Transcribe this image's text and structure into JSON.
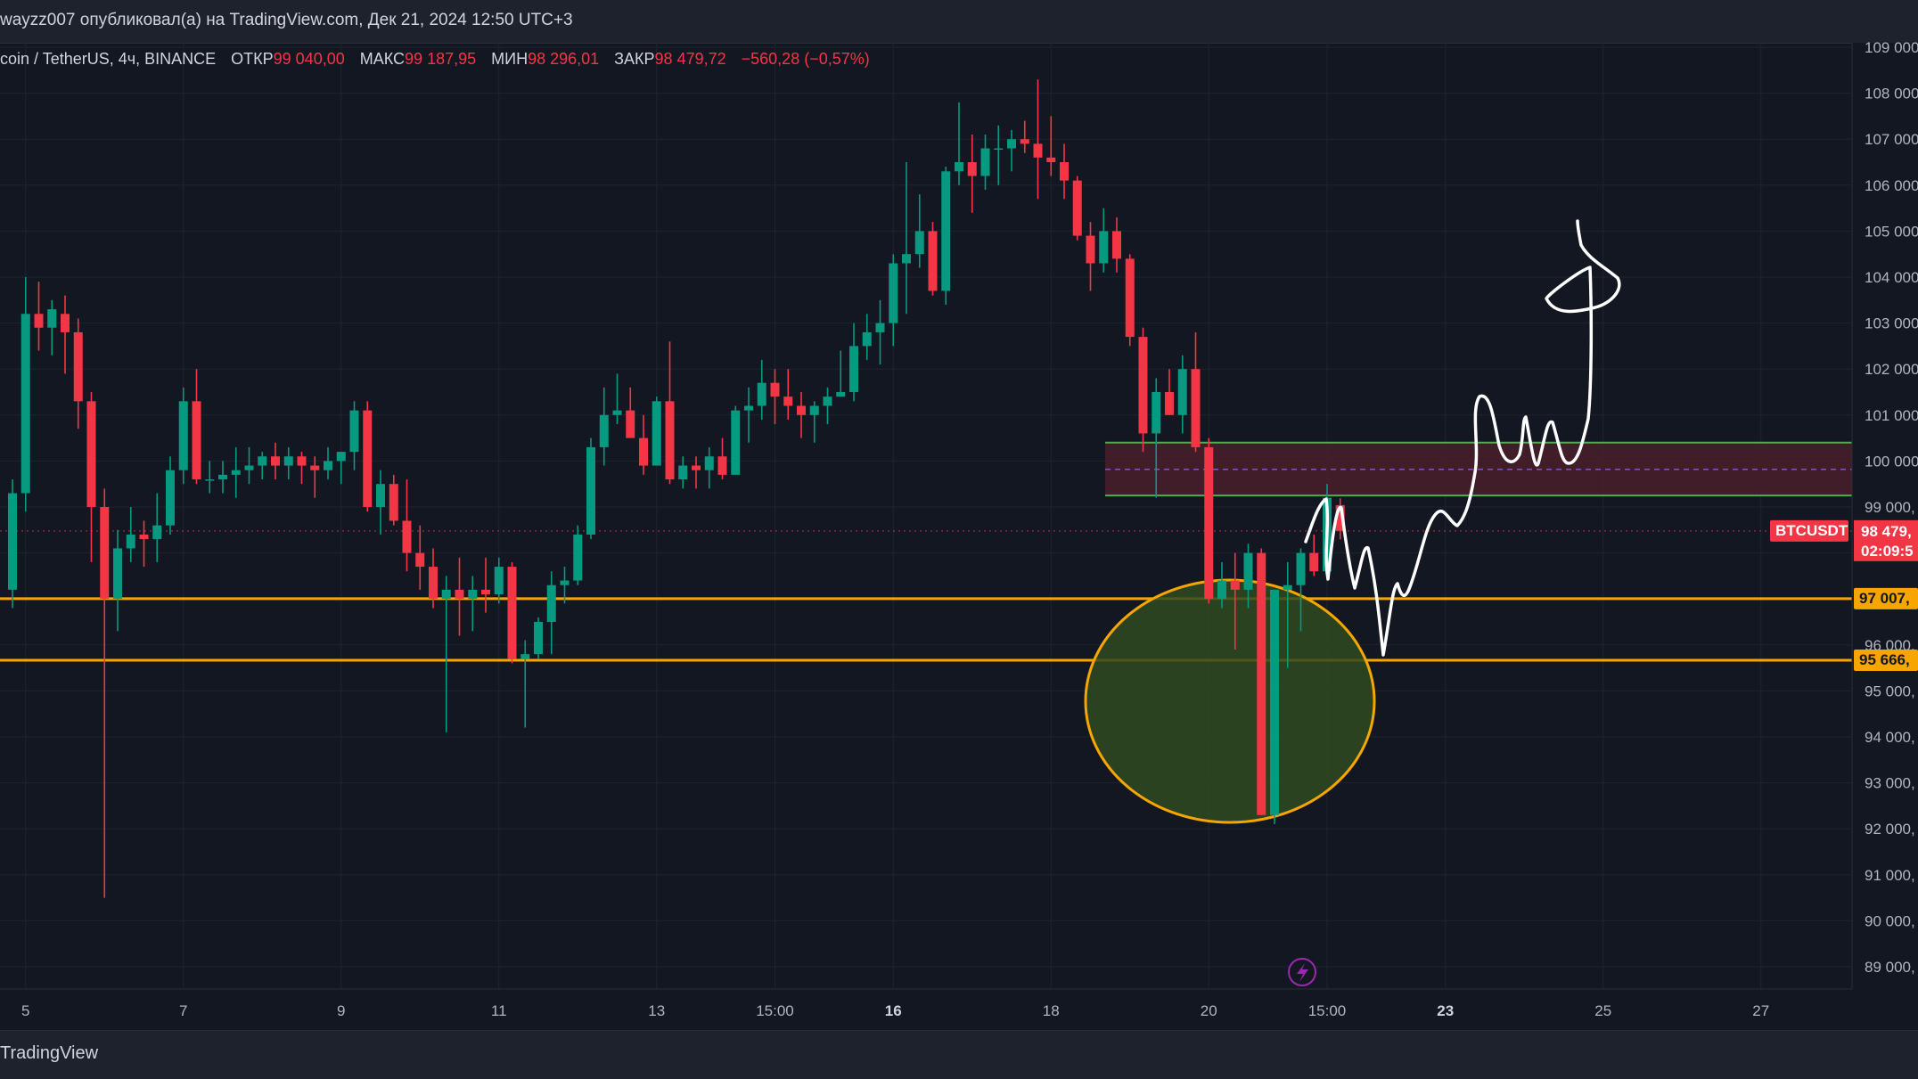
{
  "header": {
    "publish_line": "wayzz007 опубликовал(а) на TradingView.com, Дек 21, 2024 12:50 UTC+3"
  },
  "legend": {
    "symbol": "coin / TetherUS, 4ч, BINANCE",
    "open_label": "ОТКР",
    "open_value": "99 040,00",
    "high_label": "МАКС",
    "high_value": "99 187,95",
    "low_label": "МИН",
    "low_value": "98 296,01",
    "close_label": "ЗАКР",
    "close_value": "98 479,72",
    "change": "−560,28 (−0,57%)"
  },
  "footer": {
    "brand": "TradingView"
  },
  "colors": {
    "background": "#131722",
    "bull": "#089981",
    "bear": "#f23645",
    "support": "#f7a600",
    "zone_fill": "#4a1f2c",
    "zone_border": "#4caf50",
    "ellipse_fill": "#2f4a1f",
    "ellipse_stroke": "#f7a600",
    "drawing": "#ffffff"
  },
  "tags": {
    "symbol_tag": "BTCUSDT",
    "last_price": "98 479,",
    "countdown": "02:09:5",
    "support1": "97 007,",
    "support2": "95 666,"
  },
  "chart_data": {
    "type": "candlestick",
    "title": "",
    "timeframe": "4ч",
    "xlabel": "",
    "ylabel": "",
    "ylim": [
      88500,
      109200
    ],
    "y_ticks": [
      "109 000,",
      "108 000,",
      "107 000,",
      "106 000,",
      "105 000,",
      "104 000,",
      "103 000,",
      "102 000,",
      "101 000,",
      "100 000,",
      "99 000,",
      "98 000,",
      "97 000,",
      "96 000,",
      "95 000,",
      "94 000,",
      "93 000,",
      "92 000,",
      "91 000,",
      "90 000,",
      "89 000,"
    ],
    "y_tick_values": [
      109000,
      108000,
      107000,
      106000,
      105000,
      104000,
      103000,
      102000,
      101000,
      100000,
      99000,
      98000,
      97000,
      96000,
      95000,
      94000,
      93000,
      92000,
      91000,
      90000,
      89000
    ],
    "x_ticks": [
      {
        "label": "5",
        "bar": 1,
        "bold": false
      },
      {
        "label": "7",
        "bar": 13,
        "bold": false
      },
      {
        "label": "9",
        "bar": 25,
        "bold": false
      },
      {
        "label": "11",
        "bar": 37,
        "bold": false
      },
      {
        "label": "13",
        "bar": 49,
        "bold": false
      },
      {
        "label": "15:00",
        "bar": 58,
        "bold": false
      },
      {
        "label": "16",
        "bar": 67,
        "bold": true
      },
      {
        "label": "18",
        "bar": 79,
        "bold": false
      },
      {
        "label": "20",
        "bar": 91,
        "bold": false
      },
      {
        "label": "15:00",
        "bar": 100,
        "bold": false
      },
      {
        "label": "23",
        "bar": 109,
        "bold": true
      },
      {
        "label": "25",
        "bar": 121,
        "bold": false
      },
      {
        "label": "27",
        "bar": 133,
        "bold": false
      }
    ],
    "grid": true,
    "last_price": 98479.72,
    "horizontal_lines": [
      97007,
      95666
    ],
    "resistance_zone": {
      "top": 100400,
      "bottom": 99250,
      "mid": 99820
    },
    "candles": [
      [
        97200,
        99600,
        96800,
        99300
      ],
      [
        99300,
        104000,
        98900,
        103200
      ],
      [
        103200,
        103900,
        102400,
        102900
      ],
      [
        102900,
        103500,
        102300,
        103300
      ],
      [
        103200,
        103600,
        101900,
        102800
      ],
      [
        102800,
        103100,
        100700,
        101300
      ],
      [
        101300,
        101500,
        97800,
        99000
      ],
      [
        99000,
        99400,
        90500,
        97000
      ],
      [
        97000,
        98500,
        96300,
        98100
      ],
      [
        98100,
        99000,
        97800,
        98400
      ],
      [
        98400,
        98700,
        97700,
        98300
      ],
      [
        98300,
        99300,
        97800,
        98600
      ],
      [
        98600,
        100100,
        98400,
        99800
      ],
      [
        99800,
        101600,
        99500,
        101300
      ],
      [
        101300,
        102000,
        99500,
        99600
      ],
      [
        99600,
        100000,
        99300,
        99600
      ],
      [
        99600,
        100000,
        99300,
        99700
      ],
      [
        99700,
        100300,
        99200,
        99800
      ],
      [
        99800,
        100300,
        99500,
        99900
      ],
      [
        99900,
        100200,
        99600,
        100100
      ],
      [
        100100,
        100400,
        99600,
        99900
      ],
      [
        99900,
        100300,
        99600,
        100100
      ],
      [
        100100,
        100200,
        99500,
        99900
      ],
      [
        99900,
        100100,
        99200,
        99800
      ],
      [
        99800,
        100300,
        99600,
        100000
      ],
      [
        100000,
        100200,
        99500,
        100200
      ],
      [
        100200,
        101300,
        99800,
        101100
      ],
      [
        101100,
        101300,
        98900,
        99000
      ],
      [
        99000,
        99800,
        98400,
        99500
      ],
      [
        99500,
        99700,
        98600,
        98700
      ],
      [
        98700,
        99600,
        97600,
        98000
      ],
      [
        98000,
        98600,
        97200,
        97700
      ],
      [
        97700,
        98100,
        96800,
        97000
      ],
      [
        97000,
        97500,
        94100,
        97200
      ],
      [
        97200,
        97900,
        96200,
        97000
      ],
      [
        97000,
        97500,
        96300,
        97200
      ],
      [
        97200,
        97900,
        96700,
        97100
      ],
      [
        97100,
        97900,
        96900,
        97700
      ],
      [
        97700,
        97800,
        95600,
        95700
      ],
      [
        95700,
        96100,
        94200,
        95800
      ],
      [
        95800,
        96600,
        95700,
        96500
      ],
      [
        96500,
        97600,
        95800,
        97300
      ],
      [
        97300,
        97700,
        96900,
        97400
      ],
      [
        97400,
        98600,
        97300,
        98400
      ],
      [
        98400,
        100500,
        98300,
        100300
      ],
      [
        100300,
        101600,
        99900,
        101000
      ],
      [
        101000,
        101900,
        100800,
        101100
      ],
      [
        101100,
        101600,
        100500,
        100500
      ],
      [
        100500,
        101000,
        99700,
        99900
      ],
      [
        99900,
        101400,
        99900,
        101300
      ],
      [
        101300,
        102600,
        99500,
        99600
      ],
      [
        99600,
        100100,
        99400,
        99900
      ],
      [
        99900,
        100100,
        99400,
        99800
      ],
      [
        99800,
        100300,
        99400,
        100100
      ],
      [
        100100,
        100500,
        99600,
        99700
      ],
      [
        99700,
        101200,
        99700,
        101100
      ],
      [
        101100,
        101600,
        100400,
        101200
      ],
      [
        101200,
        102200,
        100900,
        101700
      ],
      [
        101700,
        102000,
        100800,
        101400
      ],
      [
        101400,
        102000,
        100900,
        101200
      ],
      [
        101200,
        101500,
        100500,
        101000
      ],
      [
        101000,
        101300,
        100400,
        101200
      ],
      [
        101200,
        101600,
        100800,
        101400
      ],
      [
        101400,
        102400,
        101400,
        101500
      ],
      [
        101500,
        103000,
        101300,
        102500
      ],
      [
        102500,
        103200,
        102200,
        102800
      ],
      [
        102800,
        103500,
        102100,
        103000
      ],
      [
        103000,
        104500,
        102500,
        104300
      ],
      [
        104300,
        106500,
        103200,
        104500
      ],
      [
        104500,
        105800,
        104200,
        105000
      ],
      [
        105000,
        105200,
        103600,
        103700
      ],
      [
        103700,
        106400,
        103400,
        106300
      ],
      [
        106300,
        107800,
        106000,
        106500
      ],
      [
        106500,
        107100,
        105400,
        106200
      ],
      [
        106200,
        107100,
        105900,
        106800
      ],
      [
        106800,
        107300,
        106000,
        106800
      ],
      [
        106800,
        107200,
        106300,
        107000
      ],
      [
        107000,
        107400,
        106700,
        106900
      ],
      [
        106900,
        108300,
        105700,
        106600
      ],
      [
        106600,
        107500,
        106200,
        106500
      ],
      [
        106500,
        106900,
        105700,
        106100
      ],
      [
        106100,
        106200,
        104800,
        104900
      ],
      [
        104900,
        105200,
        103700,
        104300
      ],
      [
        104300,
        105500,
        104100,
        105000
      ],
      [
        105000,
        105300,
        104100,
        104400
      ],
      [
        104400,
        104500,
        102500,
        102700
      ],
      [
        102700,
        102900,
        100200,
        100600
      ],
      [
        100600,
        101800,
        99200,
        101500
      ],
      [
        101500,
        102000,
        101000,
        101000
      ],
      [
        101000,
        102300,
        100600,
        102000
      ],
      [
        102000,
        102800,
        100200,
        100300
      ],
      [
        100300,
        100500,
        96900,
        97000
      ],
      [
        97000,
        97800,
        96800,
        97400
      ],
      [
        97400,
        98000,
        95900,
        97200
      ],
      [
        97200,
        98200,
        96800,
        98000
      ],
      [
        98000,
        98100,
        92300,
        92300
      ],
      [
        92300,
        97000,
        92100,
        97200
      ],
      [
        97200,
        97800,
        95500,
        97300
      ],
      [
        97300,
        98100,
        96300,
        98000
      ],
      [
        98000,
        98400,
        97500,
        97600
      ],
      [
        97600,
        99500,
        97400,
        99200
      ],
      [
        99040,
        99188,
        98296,
        98480
      ]
    ]
  }
}
